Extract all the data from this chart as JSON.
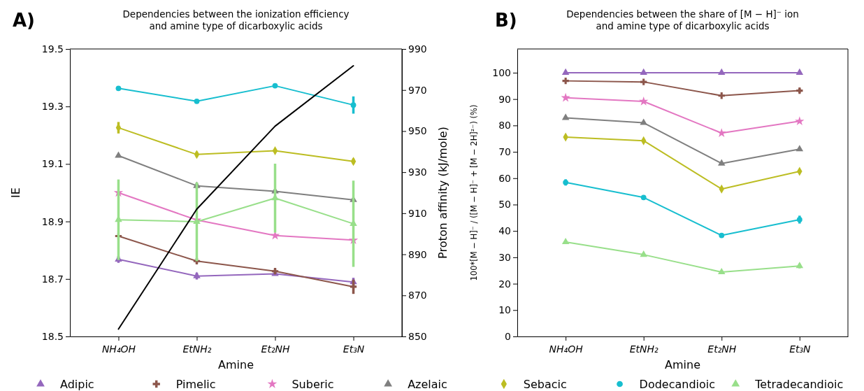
{
  "chart_data": [
    {
      "type": "line",
      "title": "Dependencies between the ionization efficiency\nand amine type of dicarboxylic acids",
      "xlabel": "Amine",
      "ylabel": "IE",
      "y2label": "Proton affinity (kJ/mole)",
      "annotations": [
        "A)"
      ],
      "categories": [
        "NH₄OH",
        "EtNH₂",
        "Et₂NH",
        "Et₃N"
      ],
      "ylim": [
        18.5,
        19.5
      ],
      "yticks": [
        18.5,
        18.7,
        18.9,
        19.1,
        19.3,
        19.5
      ],
      "y2lim": [
        850,
        990
      ],
      "y2ticks": [
        850,
        870,
        890,
        910,
        930,
        950,
        970,
        990
      ],
      "legend": "bottom",
      "series": [
        {
          "name": "Adipic",
          "color": "#9467bd",
          "marker": "triangle",
          "values": [
            18.768,
            18.71,
            18.718,
            18.689
          ],
          "errors": [
            0.012,
            0.012,
            null,
            0.015
          ]
        },
        {
          "name": "Pimelic",
          "color": "#8c564b",
          "marker": "cross",
          "values": [
            18.849,
            18.762,
            18.727,
            18.673
          ],
          "errors": [
            null,
            0.01,
            0.01,
            0.025
          ]
        },
        {
          "name": "Suberic",
          "color": "#e377c2",
          "marker": "star",
          "values": [
            19.0,
            18.905,
            18.851,
            18.835
          ]
        },
        {
          "name": "Azelaic",
          "color": "#7f7f7f",
          "marker": "triangle",
          "values": [
            19.129,
            19.024,
            19.005,
            18.975
          ],
          "errors": [
            null,
            0.01,
            null,
            null
          ]
        },
        {
          "name": "Sebacic",
          "color": "#bcbd22",
          "marker": "diamond",
          "values": [
            19.226,
            19.133,
            19.146,
            19.109
          ],
          "errors": [
            0.02,
            0.01,
            null,
            0.01
          ]
        },
        {
          "name": "Dodecandioic",
          "color": "#17becf",
          "marker": "circle",
          "values": [
            19.363,
            19.318,
            19.372,
            19.305
          ],
          "errors": [
            null,
            null,
            null,
            0.03
          ]
        },
        {
          "name": "Tetradecandioic",
          "color": "#98df8a",
          "marker": "triangle",
          "values": [
            18.906,
            18.899,
            18.981,
            18.892
          ],
          "errors": [
            0.14,
            0.137,
            0.12,
            0.15
          ]
        },
        {
          "color": "#000000",
          "axis": "y2",
          "marker": "none",
          "values": [
            853.6,
            912,
            952.4,
            981.8
          ]
        }
      ]
    },
    {
      "type": "line",
      "title": "Dependencies between the share of [M − H]⁻ ion\nand amine type of dicarboxylic acids",
      "xlabel": "Amine",
      "ylabel": "100*[M − H]⁻ / ([M − H]⁻ + [M − 2H]²⁻) (%)",
      "annotations": [
        "B)"
      ],
      "categories": [
        "NH₄OH",
        "EtNH₂",
        "Et₂NH",
        "Et₃N"
      ],
      "ylim": [
        0,
        109
      ],
      "yticks": [
        0,
        10,
        20,
        30,
        40,
        50,
        60,
        70,
        80,
        90,
        100
      ],
      "series": [
        {
          "color": "#9467bd",
          "marker": "triangle",
          "values": [
            100,
            100,
            100,
            100
          ]
        },
        {
          "color": "#8c564b",
          "marker": "cross",
          "values": [
            96.9,
            96.5,
            91.3,
            93.2
          ],
          "errors": [
            null,
            null,
            null,
            0.8
          ]
        },
        {
          "color": "#e377c2",
          "marker": "star",
          "values": [
            90.5,
            89.1,
            77.1,
            81.6
          ]
        },
        {
          "color": "#7f7f7f",
          "marker": "triangle",
          "values": [
            82.9,
            81.0,
            65.6,
            71.0
          ]
        },
        {
          "color": "#bcbd22",
          "marker": "diamond",
          "values": [
            75.6,
            74.2,
            55.9,
            62.6
          ]
        },
        {
          "color": "#17becf",
          "marker": "circle",
          "values": [
            58.4,
            52.7,
            38.3,
            44.3
          ],
          "errors": [
            1.2,
            null,
            null,
            1.5
          ]
        },
        {
          "color": "#98df8a",
          "marker": "triangle",
          "values": [
            35.8,
            31.0,
            24.4,
            26.7
          ],
          "errors": [
            null,
            null,
            null,
            0.9
          ]
        }
      ]
    }
  ]
}
